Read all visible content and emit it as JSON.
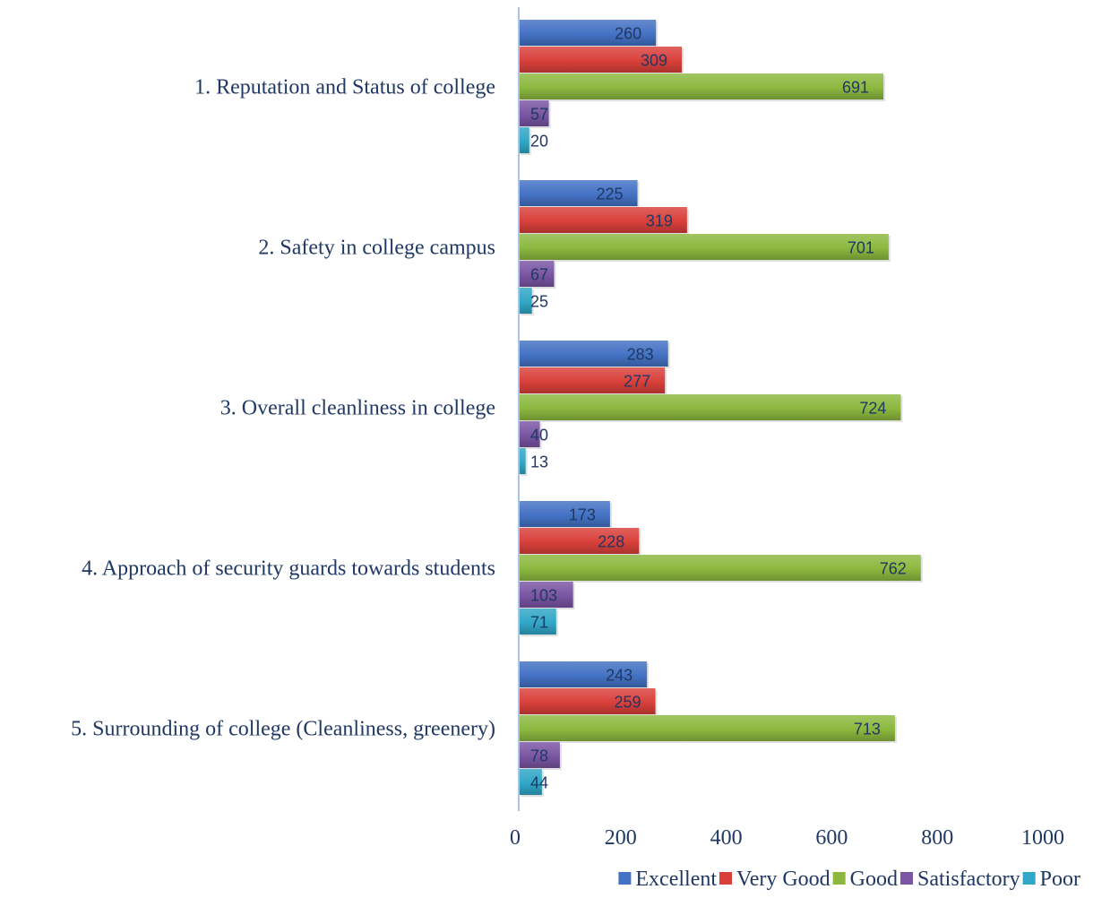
{
  "chart_data": {
    "type": "bar",
    "orientation": "horizontal",
    "title": "",
    "xlabel": "",
    "ylabel": "",
    "xlim": [
      0,
      1000
    ],
    "x_ticks": [
      "0",
      "200",
      "400",
      "600",
      "800",
      "1000"
    ],
    "grid": false,
    "legend_position": "bottom-right",
    "categories": [
      "1. Reputation and Status of college",
      "2. Safety in college campus",
      "3. Overall cleanliness in college",
      "4. Approach of security guards towards students",
      "5. Surrounding of college (Cleanliness, greenery)"
    ],
    "series": [
      {
        "name": "Excellent",
        "color": "#4472c4",
        "values": [
          260,
          225,
          283,
          173,
          243
        ]
      },
      {
        "name": "Very Good",
        "color": "#d9403b",
        "values": [
          309,
          319,
          277,
          228,
          259
        ]
      },
      {
        "name": "Good",
        "color": "#8cb83f",
        "values": [
          691,
          701,
          724,
          762,
          713
        ]
      },
      {
        "name": "Satisfactory",
        "color": "#7a55a3",
        "values": [
          57,
          67,
          40,
          103,
          78
        ]
      },
      {
        "name": "Poor",
        "color": "#31a7c7",
        "values": [
          20,
          25,
          13,
          71,
          44
        ]
      }
    ]
  }
}
